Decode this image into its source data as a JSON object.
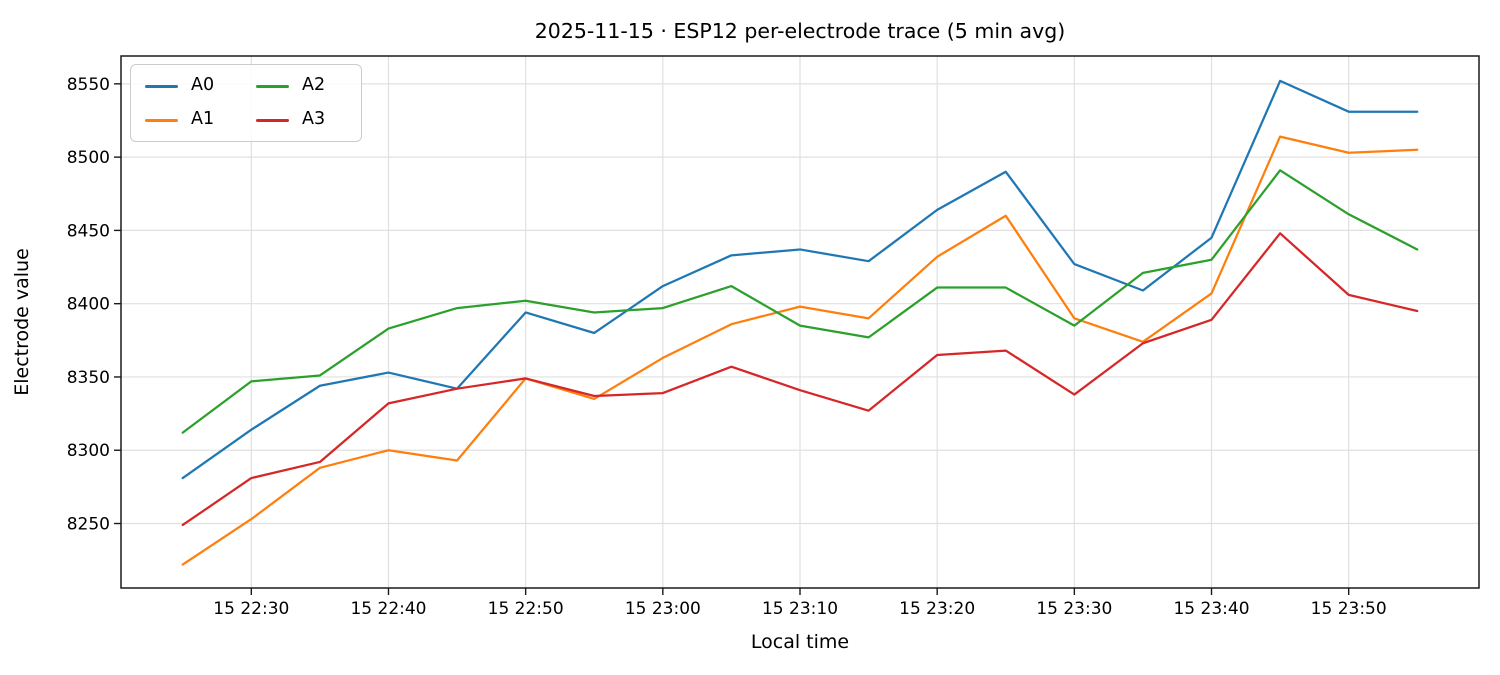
{
  "chart_data": {
    "type": "line",
    "title": "2025-11-15 · ESP12 per-electrode trace (5 min avg)",
    "xlabel": "Local time",
    "ylabel": "Electrode value",
    "grid": true,
    "legend_position": "upper-left",
    "legend_columns": 2,
    "x_times": [
      "22:25",
      "22:30",
      "22:35",
      "22:40",
      "22:45",
      "22:50",
      "22:55",
      "23:00",
      "23:05",
      "23:10",
      "23:15",
      "23:20",
      "23:25",
      "23:30",
      "23:35",
      "23:40",
      "23:45",
      "23:50",
      "23:55"
    ],
    "series": [
      {
        "name": "A0",
        "color": "#1f77b4",
        "values": [
          8281,
          8314,
          8344,
          8353,
          8342,
          8394,
          8380,
          8412,
          8433,
          8437,
          8429,
          8464,
          8490,
          8427,
          8409,
          8445,
          8552,
          8531,
          8531
        ]
      },
      {
        "name": "A1",
        "color": "#ff7f0e",
        "values": [
          8222,
          8253,
          8288,
          8300,
          8293,
          8349,
          8335,
          8363,
          8386,
          8398,
          8390,
          8432,
          8460,
          8390,
          8374,
          8407,
          8514,
          8503,
          8505
        ]
      },
      {
        "name": "A2",
        "color": "#2ca02c",
        "values": [
          8312,
          8347,
          8351,
          8383,
          8397,
          8402,
          8394,
          8397,
          8412,
          8385,
          8377,
          8411,
          8411,
          8385,
          8421,
          8430,
          8491,
          8461,
          8437
        ]
      },
      {
        "name": "A3",
        "color": "#d62728",
        "values": [
          8249,
          8281,
          8292,
          8332,
          8342,
          8349,
          8337,
          8339,
          8357,
          8341,
          8327,
          8365,
          8368,
          8338,
          8373,
          8389,
          8448,
          8406,
          8395
        ]
      }
    ],
    "x_ticks": [
      {
        "time": "22:30",
        "label": "15 22:30"
      },
      {
        "time": "22:40",
        "label": "15 22:40"
      },
      {
        "time": "22:50",
        "label": "15 22:50"
      },
      {
        "time": "23:00",
        "label": "15 23:00"
      },
      {
        "time": "23:10",
        "label": "15 23:10"
      },
      {
        "time": "23:20",
        "label": "15 23:20"
      },
      {
        "time": "23:30",
        "label": "15 23:30"
      },
      {
        "time": "23:40",
        "label": "15 23:40"
      },
      {
        "time": "23:50",
        "label": "15 23:50"
      }
    ],
    "y_ticks": [
      8250,
      8300,
      8350,
      8400,
      8450,
      8500,
      8550
    ],
    "ylim": [
      8206,
      8569
    ],
    "x_margin_minutes": 4.5,
    "colors": {
      "grid": "#e0e0e0",
      "spine": "#1a1a1a",
      "background": "#ffffff"
    }
  }
}
